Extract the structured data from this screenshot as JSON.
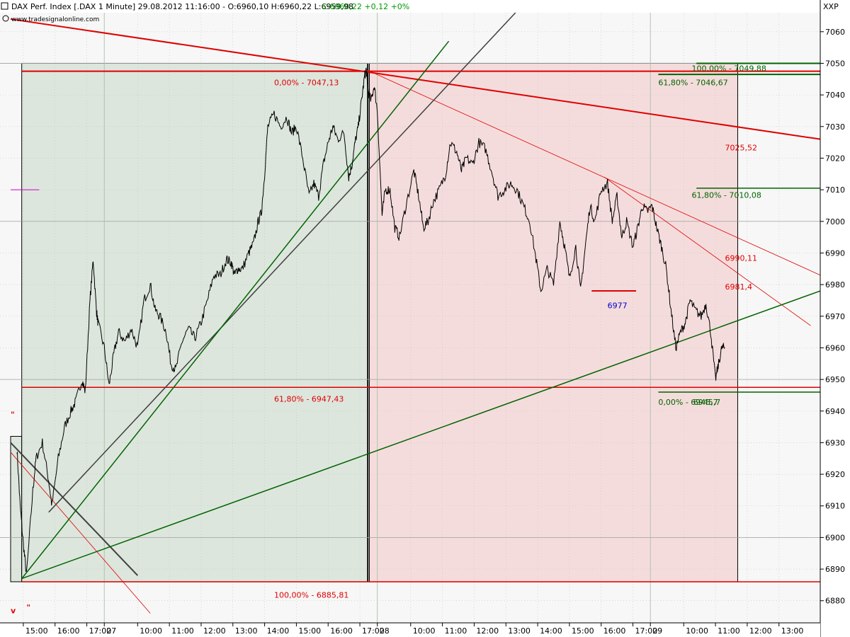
{
  "header": {
    "title": "DAX Perf. Index [.DAX  1 Minute] 29.08.2012 11:16:00 - O:6960,10 H:6960,22 L:6959,98",
    "change": "C:6960,22 +0,12 +0%",
    "source": "www.tradesignalonline.com",
    "symbol": "XXP"
  },
  "colors": {
    "price": "#000000",
    "red": "#e00000",
    "green": "#006400",
    "grey": "#404040",
    "green_zone": "#dde6dd",
    "red_zone": "#f5dcdc",
    "grid": "#b8c8b8",
    "magenta": "#cc00cc",
    "blue": "#0000cc"
  },
  "chart_data": {
    "type": "line",
    "ylim": [
      6873,
      7066
    ],
    "y_ticks": [
      "6880",
      "6890",
      "6900",
      "6910",
      "6920",
      "6930",
      "6940",
      "6950",
      "6960",
      "6970",
      "6980",
      "6990",
      "7000",
      "7010",
      "7020",
      "7030",
      "7040",
      "7050",
      "7060"
    ],
    "y_tick_values": [
      6880,
      6890,
      6900,
      6910,
      6920,
      6930,
      6940,
      6950,
      6960,
      6970,
      6980,
      6990,
      7000,
      7010,
      7020,
      7030,
      7040,
      7050,
      7060
    ],
    "x_ticks": [
      "15:00",
      "16:00",
      "17:00",
      "27",
      "10:00",
      "11:00",
      "12:00",
      "13:00",
      "14:00",
      "15:00",
      "16:00",
      "17:00",
      "28",
      "10:00",
      "11:00",
      "12:00",
      "13:00",
      "14:00",
      "15:00",
      "16:00",
      "17:00",
      "29",
      "10:00",
      "11:00",
      "12:00",
      "13:00"
    ],
    "x_tick_index": [
      0.2,
      1.2,
      2.2,
      2.75,
      3.8,
      4.8,
      5.8,
      6.8,
      7.8,
      8.8,
      9.8,
      10.8,
      11.35,
      12.4,
      13.4,
      14.4,
      15.4,
      16.4,
      17.4,
      18.4,
      19.4,
      19.95,
      21.0,
      22.0,
      23.0,
      24.0
    ],
    "x_range": [
      -0.2,
      25.3
    ],
    "price_anchors": [
      [
        0.0,
        6928
      ],
      [
        0.1,
        6910
      ],
      [
        0.2,
        6898
      ],
      [
        0.3,
        6888
      ],
      [
        0.5,
        6915
      ],
      [
        0.6,
        6925
      ],
      [
        0.8,
        6930
      ],
      [
        1.0,
        6918
      ],
      [
        1.1,
        6910
      ],
      [
        1.3,
        6925
      ],
      [
        1.5,
        6935
      ],
      [
        1.7,
        6940
      ],
      [
        1.85,
        6943
      ],
      [
        2.05,
        6950
      ],
      [
        2.15,
        6946
      ],
      [
        2.3,
        6975
      ],
      [
        2.4,
        6988
      ],
      [
        2.5,
        6972
      ],
      [
        2.55,
        6968
      ],
      [
        2.75,
        6960
      ],
      [
        2.9,
        6948
      ],
      [
        3.05,
        6958
      ],
      [
        3.2,
        6965
      ],
      [
        3.4,
        6962
      ],
      [
        3.6,
        6966
      ],
      [
        3.8,
        6960
      ],
      [
        4.0,
        6975
      ],
      [
        4.2,
        6980
      ],
      [
        4.35,
        6972
      ],
      [
        4.5,
        6970
      ],
      [
        4.7,
        6965
      ],
      [
        4.85,
        6955
      ],
      [
        5.0,
        6953
      ],
      [
        5.2,
        6962
      ],
      [
        5.4,
        6966
      ],
      [
        5.6,
        6963
      ],
      [
        5.8,
        6968
      ],
      [
        6.0,
        6975
      ],
      [
        6.2,
        6983
      ],
      [
        6.4,
        6983
      ],
      [
        6.6,
        6988
      ],
      [
        6.75,
        6987
      ],
      [
        6.85,
        6983
      ],
      [
        6.95,
        6985
      ],
      [
        7.1,
        6985
      ],
      [
        7.3,
        6990
      ],
      [
        7.45,
        6993
      ],
      [
        7.6,
        7000
      ],
      [
        7.7,
        7003
      ],
      [
        7.8,
        7015
      ],
      [
        7.9,
        7030
      ],
      [
        8.1,
        7034
      ],
      [
        8.3,
        7030
      ],
      [
        8.5,
        7033
      ],
      [
        8.65,
        7028
      ],
      [
        8.8,
        7030
      ],
      [
        9.0,
        7020
      ],
      [
        9.2,
        7008
      ],
      [
        9.35,
        7012
      ],
      [
        9.5,
        7008
      ],
      [
        9.65,
        7018
      ],
      [
        9.8,
        7025
      ],
      [
        9.95,
        7030
      ],
      [
        10.1,
        7026
      ],
      [
        10.3,
        7028
      ],
      [
        10.45,
        7014
      ],
      [
        10.55,
        7018
      ],
      [
        10.65,
        7025
      ],
      [
        10.75,
        7030
      ],
      [
        10.85,
        7038
      ],
      [
        10.95,
        7046
      ],
      [
        11.0,
        7048
      ],
      [
        11.05,
        7042
      ],
      [
        11.15,
        7038
      ],
      [
        11.25,
        7043
      ],
      [
        11.35,
        7035
      ],
      [
        11.5,
        7002
      ],
      [
        11.6,
        7010
      ],
      [
        11.75,
        7010
      ],
      [
        11.9,
        6998
      ],
      [
        12.05,
        6995
      ],
      [
        12.25,
        7005
      ],
      [
        12.5,
        7016
      ],
      [
        12.65,
        7008
      ],
      [
        12.8,
        6998
      ],
      [
        12.95,
        7000
      ],
      [
        13.1,
        7006
      ],
      [
        13.3,
        7010
      ],
      [
        13.5,
        7015
      ],
      [
        13.65,
        7025
      ],
      [
        13.85,
        7022
      ],
      [
        14.0,
        7016
      ],
      [
        14.15,
        7020
      ],
      [
        14.35,
        7018
      ],
      [
        14.55,
        7025
      ],
      [
        14.75,
        7023
      ],
      [
        14.95,
        7016
      ],
      [
        15.15,
        7008
      ],
      [
        15.35,
        7010
      ],
      [
        15.55,
        7012
      ],
      [
        15.75,
        7010
      ],
      [
        15.95,
        7005
      ],
      [
        16.15,
        7000
      ],
      [
        16.35,
        6988
      ],
      [
        16.5,
        6978
      ],
      [
        16.7,
        6985
      ],
      [
        16.9,
        6980
      ],
      [
        17.1,
        7000
      ],
      [
        17.25,
        6992
      ],
      [
        17.4,
        6982
      ],
      [
        17.6,
        6992
      ],
      [
        17.75,
        6978
      ],
      [
        17.9,
        6992
      ],
      [
        18.05,
        7005
      ],
      [
        18.2,
        7000
      ],
      [
        18.4,
        7010
      ],
      [
        18.6,
        7012
      ],
      [
        18.75,
        7000
      ],
      [
        18.9,
        7008
      ],
      [
        19.05,
        6995
      ],
      [
        19.2,
        7000
      ],
      [
        19.4,
        6992
      ],
      [
        19.55,
        6998
      ],
      [
        19.7,
        7005
      ],
      [
        19.85,
        7003
      ],
      [
        20.0,
        7005
      ],
      [
        20.15,
        6998
      ],
      [
        20.3,
        6992
      ],
      [
        20.45,
        6985
      ],
      [
        20.6,
        6972
      ],
      [
        20.75,
        6960
      ],
      [
        20.9,
        6965
      ],
      [
        21.05,
        6968
      ],
      [
        21.2,
        6975
      ],
      [
        21.35,
        6972
      ],
      [
        21.55,
        6970
      ],
      [
        21.7,
        6974
      ],
      [
        21.85,
        6965
      ],
      [
        22.0,
        6950
      ],
      [
        22.1,
        6955
      ],
      [
        22.2,
        6960
      ],
      [
        22.3,
        6960
      ]
    ],
    "annotations": {
      "fib_red_0": "0,00% - 7047,13",
      "fib_red_618": "61,80% - 6947,43",
      "fib_red_100": "100,00% - 6885,81",
      "fib_green_100": "100,00% - 7049,88",
      "fib_green_618_a": "61,80% - 7046,67",
      "fib_green_618_b": "61,80% - 7010,08",
      "fib_green_0": "0,00% - 6945,7",
      "fib_green_0_overlap": "6945,7",
      "level_7025": "7025,52",
      "level_6990": "6990,11",
      "level_6981": "6981,4",
      "level_6977": "6977",
      "marker_v": "v",
      "marker_quote": "\""
    }
  }
}
